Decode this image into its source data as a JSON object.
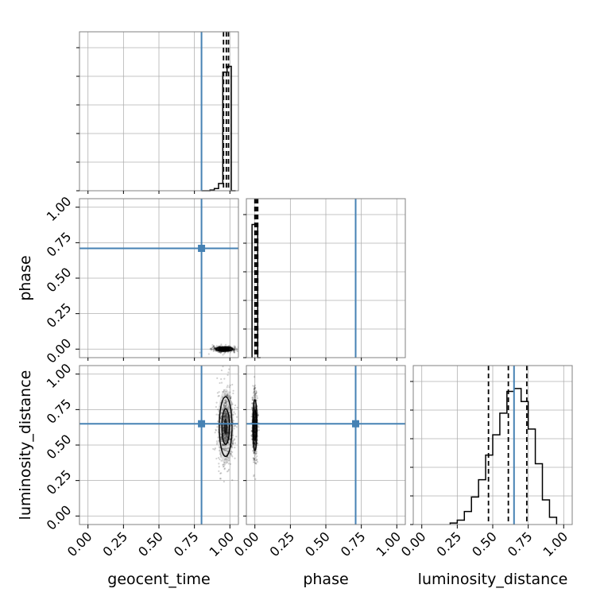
{
  "colors": {
    "truth": "#4682b4",
    "ink": "#000000",
    "grid": "#b0b0b0"
  },
  "chart_data": {
    "type": "corner",
    "parameters": [
      "geocent_time",
      "phase",
      "luminosity_distance"
    ],
    "tick_values": [
      0.0,
      0.25,
      0.5,
      0.75,
      1.0
    ],
    "tick_labels": [
      "0.00",
      "0.25",
      "0.50",
      "0.75",
      "1.00"
    ],
    "axis_range": [
      -0.06,
      1.06
    ],
    "grid": true,
    "truths": {
      "geocent_time": 0.8,
      "phase": 0.71,
      "luminosity_distance": 0.65
    },
    "quantiles": {
      "geocent_time": [
        0.955,
        0.975,
        0.99
      ],
      "phase": [
        0.0,
        0.01,
        0.02
      ],
      "luminosity_distance": [
        0.47,
        0.61,
        0.74
      ]
    },
    "histograms": {
      "geocent_time": {
        "bin_edges": [
          0.8,
          0.83,
          0.86,
          0.89,
          0.92,
          0.95,
          0.98,
          1.01,
          1.04
        ],
        "counts": [
          0,
          0,
          0.005,
          0.015,
          0.05,
          0.82,
          0.86,
          0
        ]
      },
      "phase": {
        "bin_edges": [
          -0.02,
          0.0,
          0.02,
          0.04
        ],
        "counts": [
          0.92,
          0.92,
          0
        ]
      },
      "luminosity_distance": {
        "bin_edges": [
          0.2,
          0.25,
          0.3,
          0.35,
          0.4,
          0.45,
          0.5,
          0.55,
          0.6,
          0.65,
          0.7,
          0.75,
          0.8,
          0.85,
          0.9,
          0.95
        ],
        "counts": [
          0.01,
          0.03,
          0.09,
          0.19,
          0.31,
          0.48,
          0.62,
          0.77,
          0.92,
          0.94,
          0.85,
          0.66,
          0.42,
          0.17,
          0.05
        ]
      }
    },
    "joint": {
      "phase_vs_geocent_time": {
        "x_center": 0.96,
        "x_spread": 0.04,
        "y_center": 0.0,
        "y_spread": 0.01
      },
      "luminosity_distance_vs_geocent_time": {
        "x_center": 0.97,
        "x_spread": 0.03,
        "y_center": 0.63,
        "y_spread": 0.14
      },
      "luminosity_distance_vs_phase": {
        "x_center": 0.0,
        "x_spread": 0.01,
        "y_center": 0.64,
        "y_spread": 0.12
      }
    }
  }
}
